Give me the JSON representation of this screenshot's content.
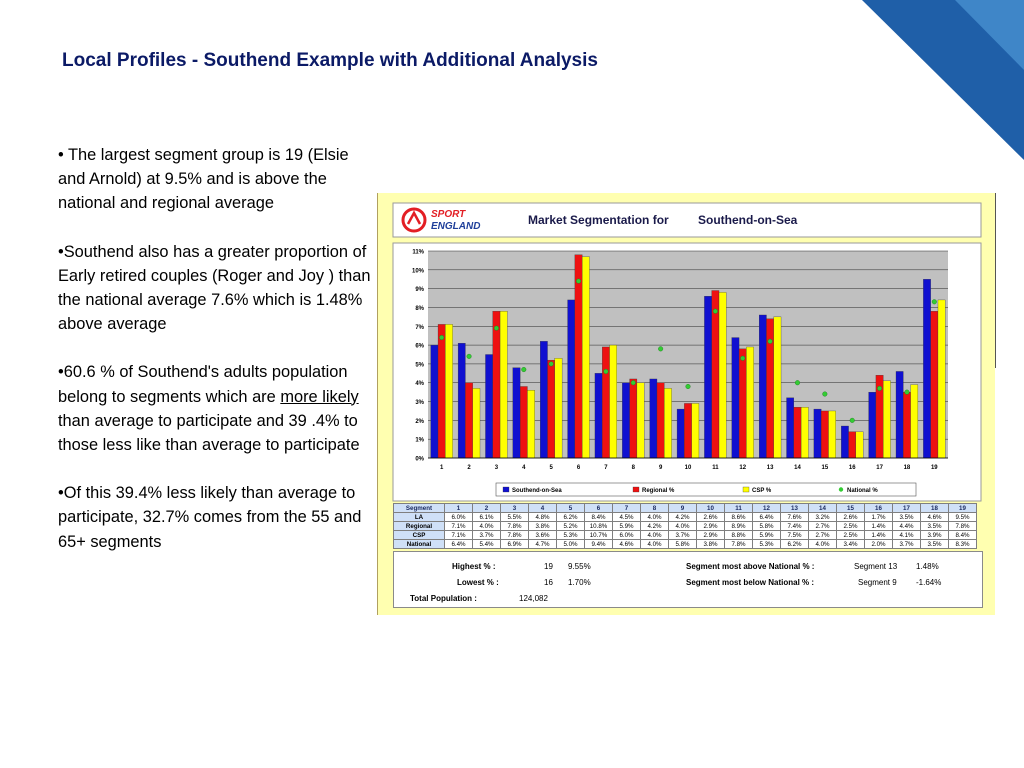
{
  "slide": {
    "title": "Local Profiles - Southend Example with Additional Analysis",
    "bullets": [
      {
        "pre": "•  The largest segment group is 19 (Elsie and Arnold)  at 9.5% and  is above the national and regional average",
        "u": "",
        "post": ""
      },
      {
        "pre": "•Southend also has a greater proportion of Early retired couples (Roger and Joy ) than the national average 7.6%  which is 1.48% above average",
        "u": "",
        "post": ""
      },
      {
        "pre": "•60.6 % of Southend's adults population  belong to segments which are ",
        "u": "more likely ",
        "post": "than average to participate and  39 .4% to those less like than average to participate"
      },
      {
        "pre": "•Of this 39.4% less likely than average to participate,  32.7% comes from the 55 and 65+ segments",
        "u": "",
        "post": ""
      }
    ],
    "colors": {
      "corner_dark": "#1f5fa8",
      "corner_light": "#3f86c8",
      "title": "#0b1a66"
    }
  },
  "panel": {
    "logo_line1": "SPORT",
    "logo_line2": "ENGLAND",
    "heading": "Market Segmentation for",
    "location": "Southend-on-Sea"
  },
  "chart_data": {
    "type": "bar",
    "categories": [
      "1",
      "2",
      "3",
      "4",
      "5",
      "6",
      "7",
      "8",
      "9",
      "10",
      "11",
      "12",
      "13",
      "14",
      "15",
      "16",
      "17",
      "18",
      "19"
    ],
    "ylim": [
      0,
      11
    ],
    "yticks": [
      "0%",
      "1%",
      "2%",
      "3%",
      "4%",
      "5%",
      "6%",
      "7%",
      "8%",
      "9%",
      "10%",
      "11%"
    ],
    "grid": true,
    "legend_position": "bottom",
    "series": [
      {
        "name": "Southend-on-Sea",
        "color": "#1010d0",
        "values": [
          6.0,
          6.1,
          5.5,
          4.8,
          6.2,
          8.4,
          4.5,
          4.0,
          4.2,
          2.6,
          8.6,
          6.4,
          7.6,
          3.2,
          2.6,
          1.7,
          3.5,
          4.6,
          9.5
        ]
      },
      {
        "name": "Regional %",
        "color": "#ee1111",
        "values": [
          7.1,
          4.0,
          7.8,
          3.8,
          5.2,
          10.8,
          5.9,
          4.2,
          4.0,
          2.9,
          8.9,
          5.8,
          7.4,
          2.7,
          2.5,
          1.4,
          4.4,
          3.5,
          7.8
        ]
      },
      {
        "name": "CSP %",
        "color": "#ffff00",
        "values": [
          7.1,
          3.7,
          7.8,
          3.6,
          5.3,
          10.7,
          6.0,
          4.0,
          3.7,
          2.9,
          8.8,
          5.9,
          7.5,
          2.7,
          2.5,
          1.4,
          4.1,
          3.9,
          8.4
        ]
      },
      {
        "name": "National %",
        "color": "#33cc33",
        "type": "point",
        "values": [
          6.4,
          5.4,
          6.9,
          4.7,
          5.0,
          9.4,
          4.6,
          4.0,
          5.8,
          3.8,
          7.8,
          5.3,
          6.2,
          4.0,
          3.4,
          2.0,
          3.7,
          3.5,
          8.3
        ]
      }
    ]
  },
  "table": {
    "header_label": "Segment",
    "rows": [
      {
        "label": "LA",
        "cells": [
          "6.0%",
          "6.1%",
          "5.5%",
          "4.8%",
          "6.2%",
          "8.4%",
          "4.5%",
          "4.0%",
          "4.2%",
          "2.6%",
          "8.6%",
          "6.4%",
          "7.6%",
          "3.2%",
          "2.6%",
          "1.7%",
          "3.5%",
          "4.6%",
          "9.5%"
        ]
      },
      {
        "label": "Regional",
        "cells": [
          "7.1%",
          "4.0%",
          "7.8%",
          "3.8%",
          "5.2%",
          "10.8%",
          "5.9%",
          "4.2%",
          "4.0%",
          "2.9%",
          "8.9%",
          "5.8%",
          "7.4%",
          "2.7%",
          "2.5%",
          "1.4%",
          "4.4%",
          "3.5%",
          "7.8%"
        ]
      },
      {
        "label": "CSP",
        "cells": [
          "7.1%",
          "3.7%",
          "7.8%",
          "3.6%",
          "5.3%",
          "10.7%",
          "6.0%",
          "4.0%",
          "3.7%",
          "2.9%",
          "8.8%",
          "5.9%",
          "7.5%",
          "2.7%",
          "2.5%",
          "1.4%",
          "4.1%",
          "3.9%",
          "8.4%"
        ]
      },
      {
        "label": "National",
        "cells": [
          "6.4%",
          "5.4%",
          "6.9%",
          "4.7%",
          "5.0%",
          "9.4%",
          "4.6%",
          "4.0%",
          "5.8%",
          "3.8%",
          "7.8%",
          "5.3%",
          "6.2%",
          "4.0%",
          "3.4%",
          "2.0%",
          "3.7%",
          "3.5%",
          "8.3%"
        ]
      }
    ]
  },
  "summary": {
    "highest_label": "Highest % :",
    "highest_segment": "19",
    "highest_value": "9.55%",
    "lowest_label": "Lowest % :",
    "lowest_segment": "16",
    "lowest_value": "1.70%",
    "total_label": "Total Population :",
    "total_value": "124,082",
    "above_label": "Segment most above National % :",
    "above_segment": "Segment 13",
    "above_value": "1.48%",
    "below_label": "Segment most below National % :",
    "below_segment": "Segment 9",
    "below_value": "-1.64%"
  }
}
